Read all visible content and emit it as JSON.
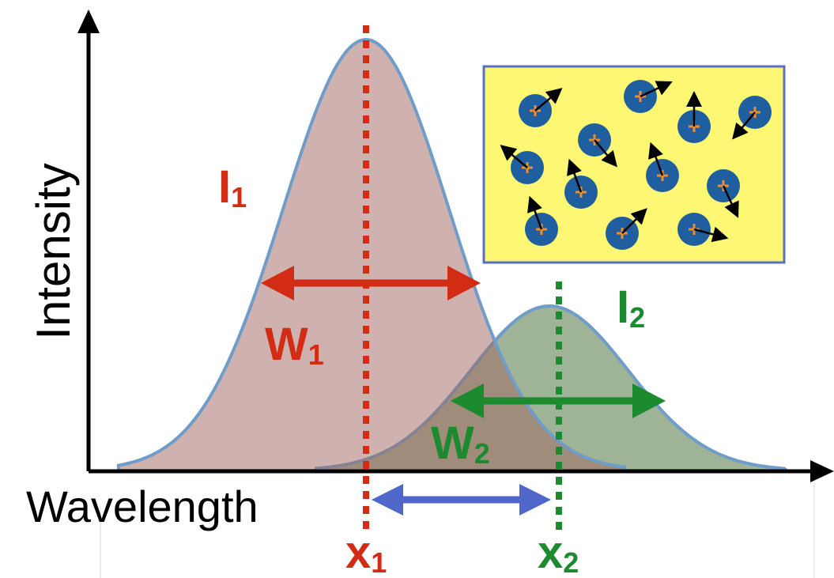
{
  "axes": {
    "y_label": "Intensity",
    "x_label": "Wavelength"
  },
  "peak_1": {
    "intensity": {
      "main": "I",
      "sub": "1"
    },
    "width": {
      "main": "W",
      "sub": "1"
    },
    "position": {
      "main": "x",
      "sub": "1"
    }
  },
  "peak_2": {
    "intensity": {
      "main": "I",
      "sub": "2"
    },
    "width": {
      "main": "W",
      "sub": "2"
    },
    "position": {
      "main": "x",
      "sub": "2"
    }
  }
}
